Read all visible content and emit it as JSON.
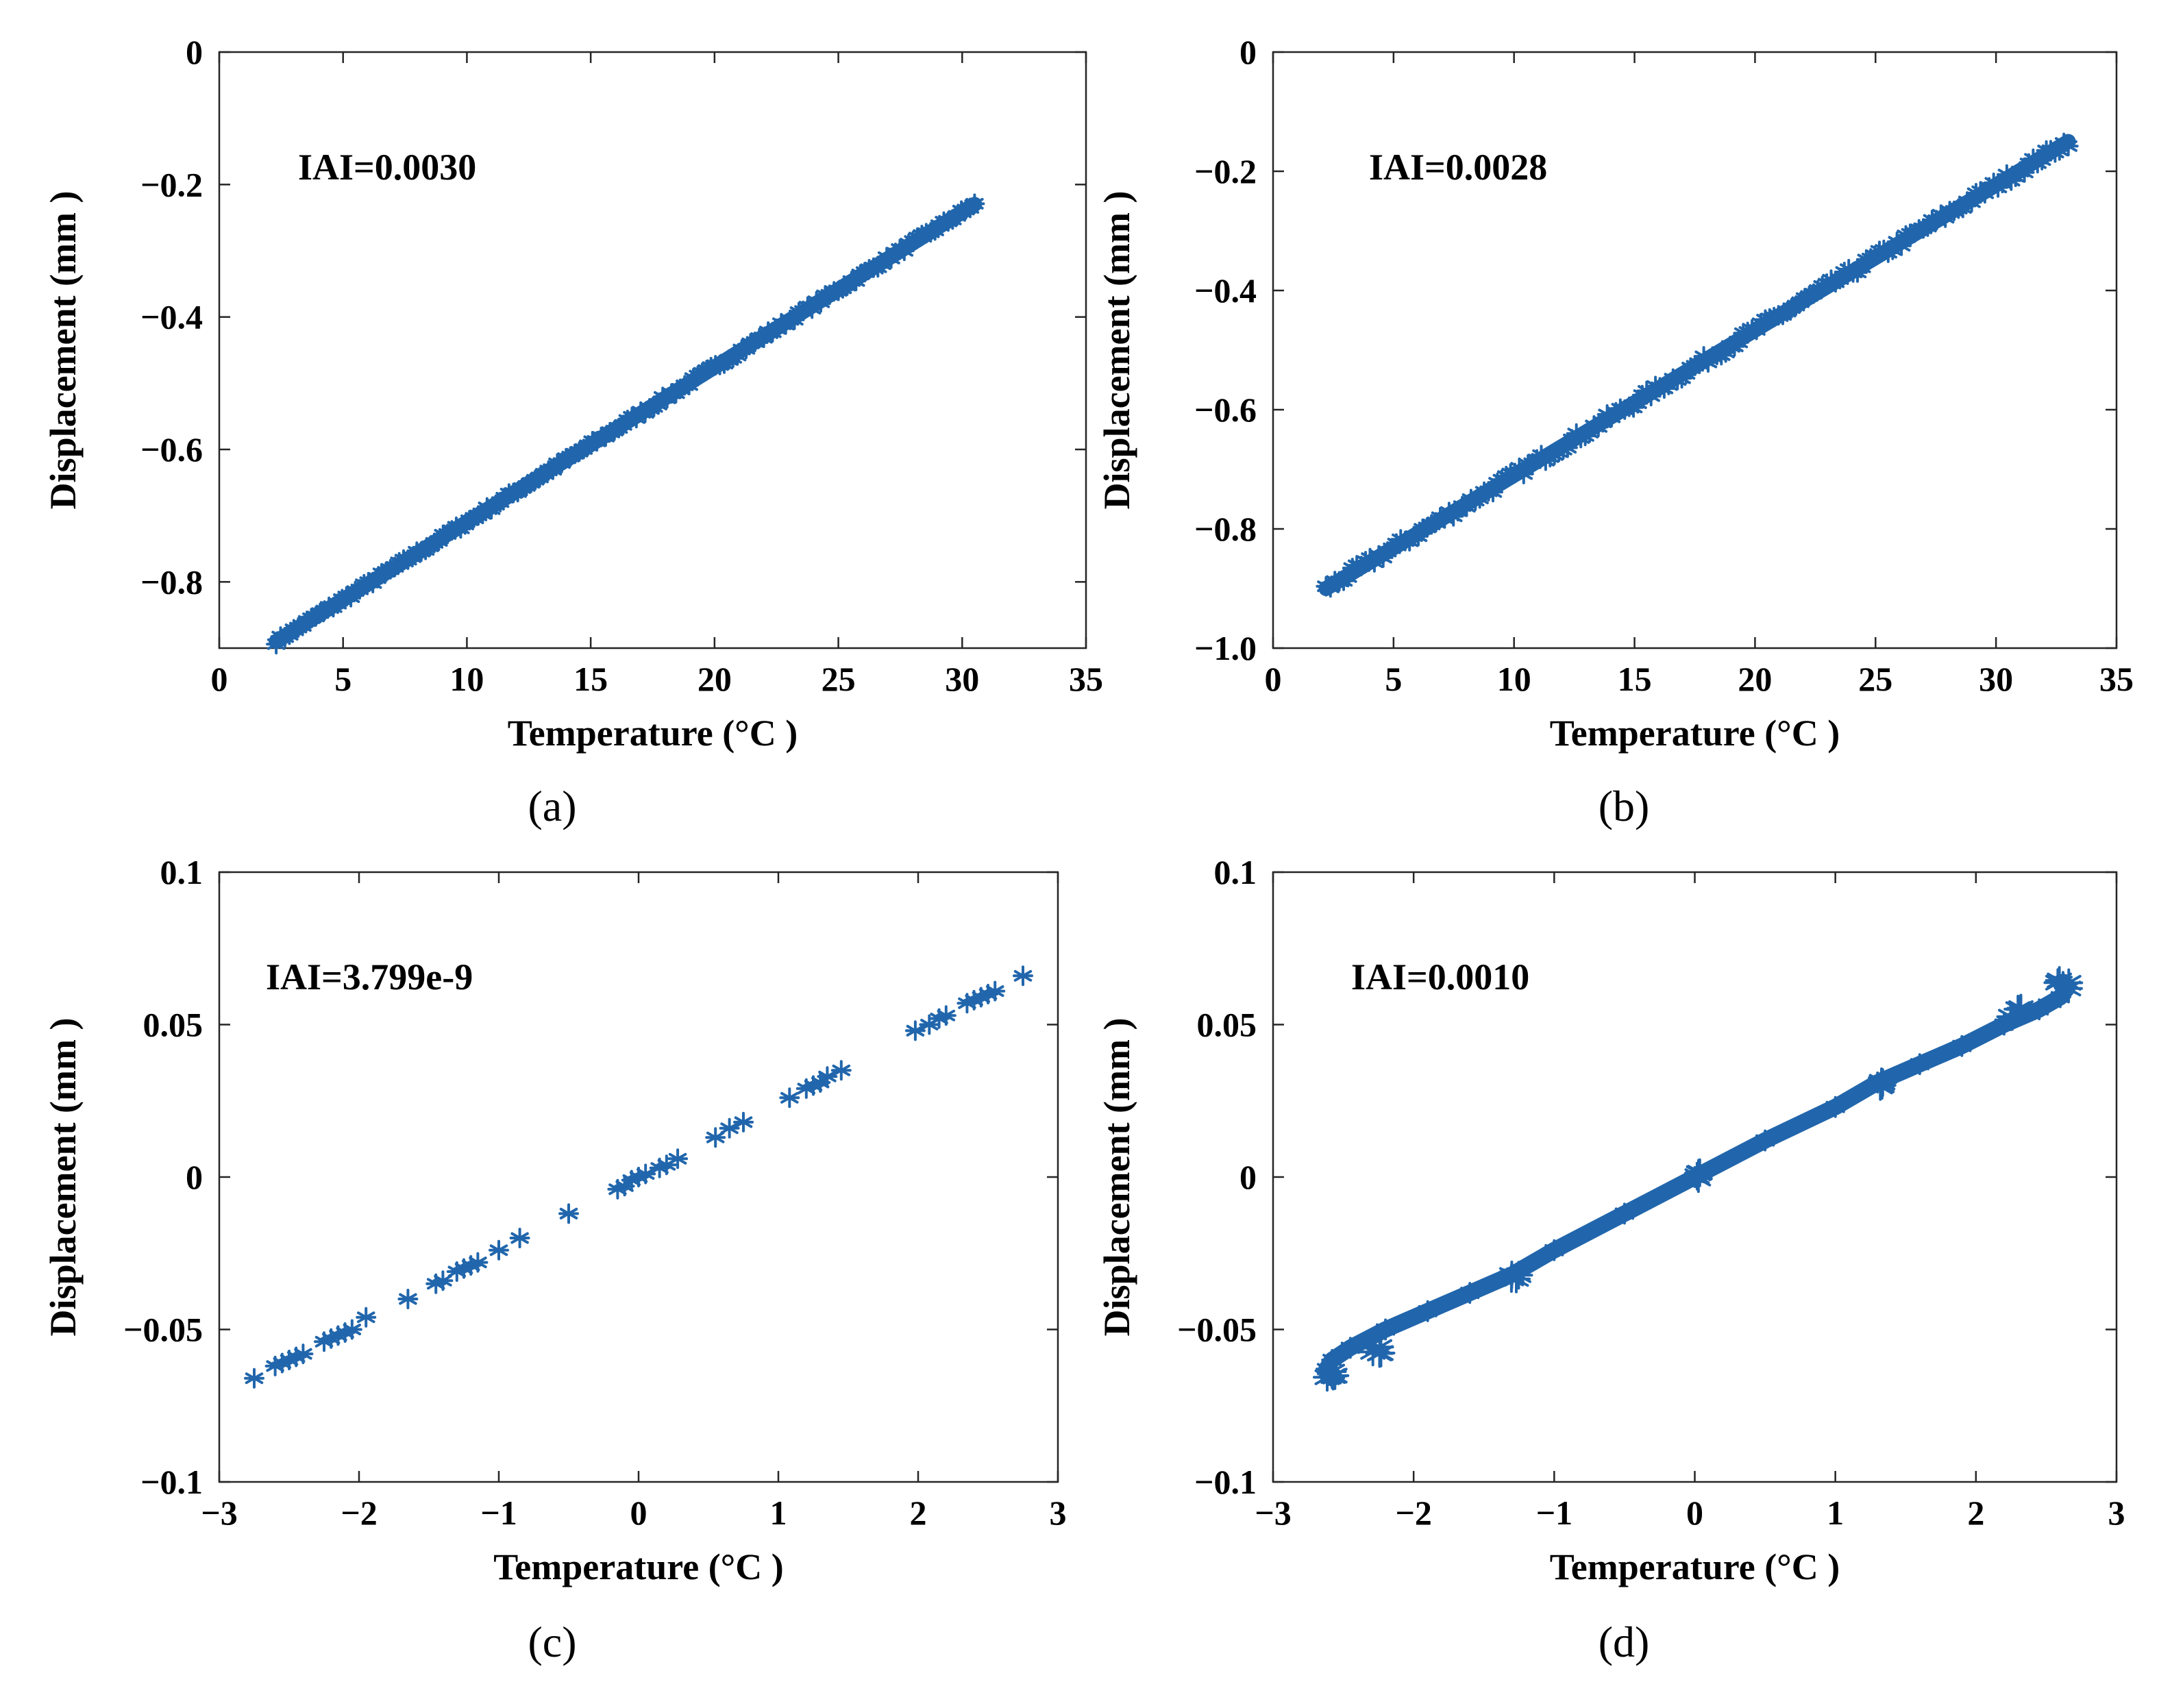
{
  "figure": {
    "series_color": "#2166ac",
    "marker": "asterisk"
  },
  "chart_data": [
    {
      "type": "scatter",
      "panel_label": "(a)",
      "annotation": "IAI=0.0030",
      "xlabel": "Temperature (°C )",
      "ylabel": "Displacement (mm )",
      "xlim": [
        0,
        35
      ],
      "ylim": [
        -0.9,
        0
      ],
      "xticks": [
        0,
        5,
        10,
        15,
        20,
        25,
        30,
        35
      ],
      "xticklabels": [
        "0",
        "5",
        "10",
        "15",
        "20",
        "25",
        "30",
        "35"
      ],
      "yticks": [
        0,
        -0.2,
        -0.4,
        -0.6,
        -0.8
      ],
      "yticklabels": [
        "0",
        "−0.2",
        "−0.4",
        "−0.6",
        "−0.8"
      ],
      "series": [
        {
          "name": "displacement",
          "x_range": [
            2.3,
            30.5
          ],
          "y_range": [
            -0.89,
            -0.23
          ],
          "style": "dense",
          "count": 160,
          "jitter": 0.004
        }
      ]
    },
    {
      "type": "scatter",
      "panel_label": "(b)",
      "annotation": "IAI=0.0028",
      "xlabel": "Temperature (°C )",
      "ylabel": "Displacement (mm )",
      "xlim": [
        0,
        35
      ],
      "ylim": [
        -1.0,
        0
      ],
      "xticks": [
        0,
        5,
        10,
        15,
        20,
        25,
        30,
        35
      ],
      "xticklabels": [
        "0",
        "5",
        "10",
        "15",
        "20",
        "25",
        "30",
        "35"
      ],
      "yticks": [
        0,
        -0.2,
        -0.4,
        -0.6,
        -0.8,
        -1.0
      ],
      "yticklabels": [
        "0",
        "−0.2",
        "−0.4",
        "−0.6",
        "−0.8",
        "−1.0"
      ],
      "series": [
        {
          "name": "displacement",
          "x_range": [
            2.2,
            33.0
          ],
          "y_range": [
            -0.9,
            -0.15
          ],
          "style": "dense",
          "count": 170,
          "jitter": 0.008
        }
      ]
    },
    {
      "type": "scatter",
      "panel_label": "(c)",
      "annotation": "IAI=3.799e-9",
      "xlabel": "Temperature (°C )",
      "ylabel": "Displacement (mm )",
      "xlim": [
        -3,
        3
      ],
      "ylim": [
        -0.1,
        0.1
      ],
      "xticks": [
        -3,
        -2,
        -1,
        0,
        1,
        2,
        3
      ],
      "xticklabels": [
        "−3",
        "−2",
        "−1",
        "0",
        "1",
        "2",
        "3"
      ],
      "yticks": [
        0.1,
        0.05,
        0,
        -0.05,
        -0.1
      ],
      "yticklabels": [
        "0.1",
        "0.05",
        "0",
        "−0.05",
        "−0.1"
      ],
      "series": [
        {
          "name": "displacement",
          "style": "sparse",
          "points": [
            [
              -2.75,
              -0.066
            ],
            [
              -2.6,
              -0.062
            ],
            [
              -2.55,
              -0.061
            ],
            [
              -2.5,
              -0.06
            ],
            [
              -2.45,
              -0.059
            ],
            [
              -2.4,
              -0.058
            ],
            [
              -2.25,
              -0.054
            ],
            [
              -2.2,
              -0.053
            ],
            [
              -2.15,
              -0.052
            ],
            [
              -2.1,
              -0.051
            ],
            [
              -2.05,
              -0.05
            ],
            [
              -1.95,
              -0.046
            ],
            [
              -1.65,
              -0.04
            ],
            [
              -1.45,
              -0.035
            ],
            [
              -1.4,
              -0.034
            ],
            [
              -1.3,
              -0.031
            ],
            [
              -1.25,
              -0.03
            ],
            [
              -1.2,
              -0.029
            ],
            [
              -1.15,
              -0.028
            ],
            [
              -1.0,
              -0.024
            ],
            [
              -0.85,
              -0.02
            ],
            [
              -0.5,
              -0.012
            ],
            [
              -0.15,
              -0.004
            ],
            [
              -0.1,
              -0.003
            ],
            [
              -0.05,
              -0.001
            ],
            [
              0.0,
              0.0
            ],
            [
              0.05,
              0.001
            ],
            [
              0.15,
              0.003
            ],
            [
              0.2,
              0.004
            ],
            [
              0.28,
              0.006
            ],
            [
              0.55,
              0.013
            ],
            [
              0.65,
              0.016
            ],
            [
              0.75,
              0.018
            ],
            [
              1.08,
              0.026
            ],
            [
              1.2,
              0.029
            ],
            [
              1.25,
              0.03
            ],
            [
              1.3,
              0.031
            ],
            [
              1.35,
              0.033
            ],
            [
              1.45,
              0.035
            ],
            [
              1.98,
              0.048
            ],
            [
              2.08,
              0.05
            ],
            [
              2.15,
              0.052
            ],
            [
              2.2,
              0.053
            ],
            [
              2.35,
              0.057
            ],
            [
              2.4,
              0.058
            ],
            [
              2.45,
              0.059
            ],
            [
              2.5,
              0.06
            ],
            [
              2.55,
              0.061
            ],
            [
              2.75,
              0.066
            ]
          ]
        }
      ]
    },
    {
      "type": "scatter",
      "panel_label": "(d)",
      "annotation": "IAI=0.0010",
      "xlabel": "Temperature (°C )",
      "ylabel": "Displacement (mm )",
      "xlim": [
        -3,
        3
      ],
      "ylim": [
        -0.1,
        0.1
      ],
      "xticks": [
        -3,
        -2,
        -1,
        0,
        1,
        2,
        3
      ],
      "xticklabels": [
        "−3",
        "−2",
        "−1",
        "0",
        "1",
        "2",
        "3"
      ],
      "yticks": [
        0.1,
        0.05,
        0,
        -0.05,
        -0.1
      ],
      "yticklabels": [
        "0.1",
        "0.05",
        "0",
        "−0.05",
        "−0.1"
      ],
      "series": [
        {
          "name": "displacement",
          "style": "path",
          "points": [
            [
              -2.58,
              -0.066
            ],
            [
              -2.62,
              -0.063
            ],
            [
              -2.58,
              -0.06
            ],
            [
              -2.45,
              -0.056
            ],
            [
              -2.2,
              -0.05
            ],
            [
              -1.9,
              -0.044
            ],
            [
              -1.6,
              -0.038
            ],
            [
              -1.3,
              -0.032
            ],
            [
              -1.0,
              -0.024
            ],
            [
              -0.5,
              -0.012
            ],
            [
              0.0,
              0.0
            ],
            [
              0.5,
              0.012
            ],
            [
              1.0,
              0.023
            ],
            [
              1.3,
              0.031
            ],
            [
              1.6,
              0.037
            ],
            [
              1.9,
              0.043
            ],
            [
              2.2,
              0.05
            ],
            [
              2.45,
              0.055
            ],
            [
              2.6,
              0.059
            ],
            [
              2.65,
              0.062
            ],
            [
              2.62,
              0.064
            ]
          ],
          "clusters": [
            [
              -2.6,
              -0.065
            ],
            [
              -2.25,
              -0.057
            ],
            [
              -1.28,
              -0.033
            ],
            [
              0.0,
              0.0
            ],
            [
              1.3,
              0.031
            ],
            [
              2.28,
              0.054
            ],
            [
              2.62,
              0.063
            ]
          ]
        }
      ]
    }
  ]
}
